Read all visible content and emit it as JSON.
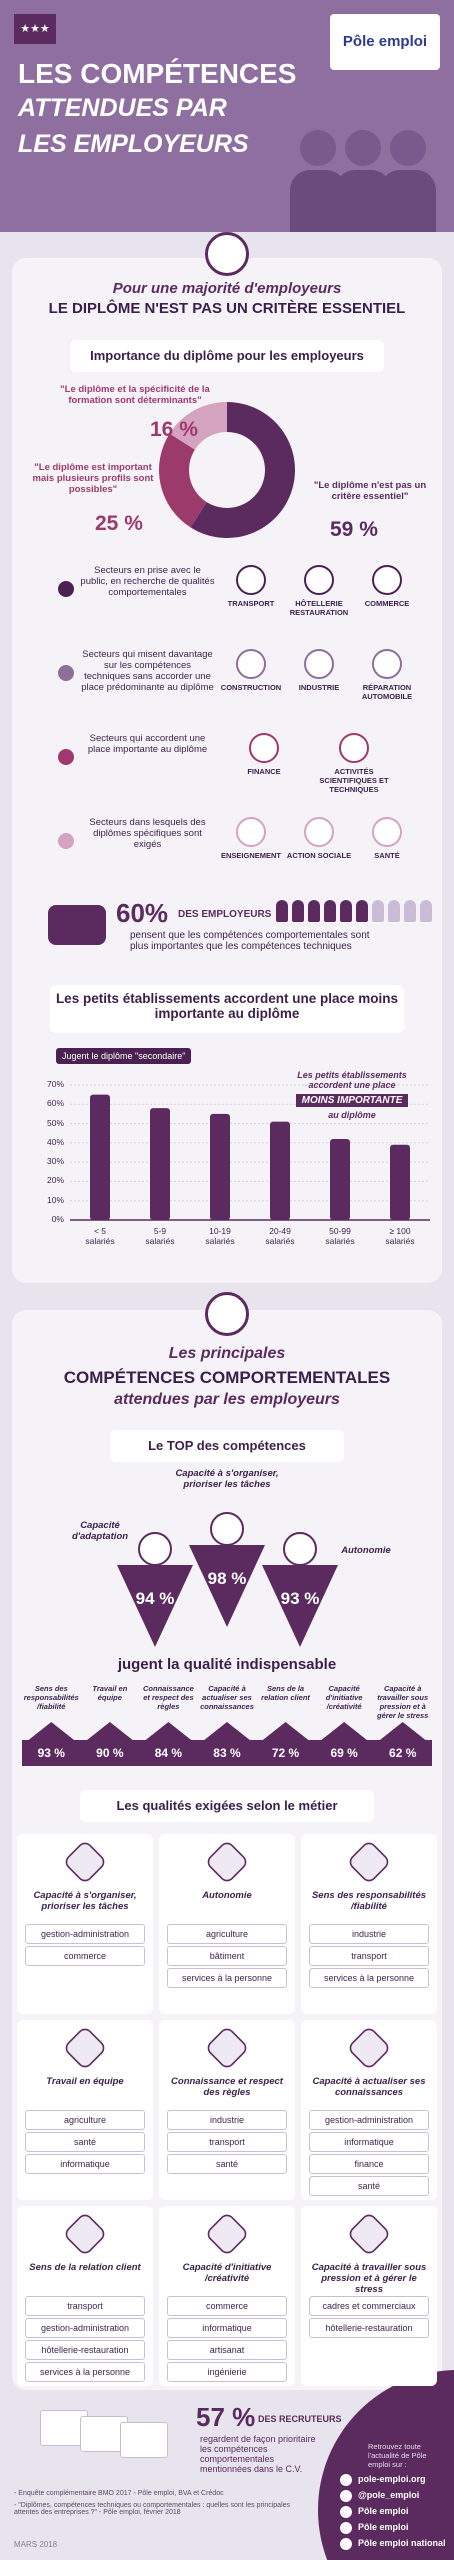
{
  "header": {
    "title_lines": [
      "LES COMPÉTENCES",
      "ATTENDUES PAR",
      "LES EMPLOYEURS"
    ],
    "logo": "Pôle emploi"
  },
  "section1": {
    "kicker": "Pour une majorité d'employeurs",
    "title": "LE DIPLÔME N'EST PAS UN CRITÈRE ESSENTIEL",
    "sectors": [
      {
        "color": "#4a2150",
        "description": "Secteurs en prise avec le public, en recherche de qualités comportementales",
        "items": [
          "TRANSPORT",
          "HÔTELLERIE RESTAURATION",
          "COMMERCE"
        ]
      },
      {
        "color": "#8d6f9b",
        "description": "Secteurs qui misent davantage sur les compétences techniques sans accorder une place prédominante au diplôme",
        "items": [
          "CONSTRUCTION",
          "INDUSTRIE",
          "RÉPARATION AUTOMOBILE"
        ]
      },
      {
        "color": "#a0386f",
        "description": "Secteurs qui accordent une place importante au diplôme",
        "items": [
          "FINANCE",
          "ACTIVITÉS SCIENTIFIQUES ET TECHNIQUES"
        ]
      },
      {
        "color": "#d3a3c0",
        "description": "Secteurs dans lesquels des diplômes spécifiques sont exigés",
        "items": [
          "ENSEIGNEMENT",
          "ACTION SOCIALE",
          "SANTÉ"
        ]
      }
    ],
    "stat": {
      "value": 60,
      "value_label": "60%",
      "lead": "DES EMPLOYEURS",
      "text": "pensent que les compétences comportementales sont plus importantes que les compétences techniques"
    }
  },
  "chart_data": [
    {
      "type": "pie",
      "title": "Importance du diplôme pour les employeurs",
      "categories": [
        "\"Le diplôme et la spécificité de la formation sont déterminants\"",
        "\"Le diplôme est important mais plusieurs profils sont possibles\"",
        "\"Le diplôme n'est pas un critère essentiel\""
      ],
      "values": [
        16,
        25,
        59
      ],
      "value_labels": [
        "16 %",
        "25 %",
        "59 %"
      ],
      "colors": [
        "#d3a3c0",
        "#9d3a6c",
        "#5b2a5e"
      ]
    },
    {
      "type": "bar",
      "title": "Les petits établissements accordent une place moins importante au diplôme",
      "categories": [
        "< 5 salariés",
        "5-9 salariés",
        "10-19 salariés",
        "20-49 salariés",
        "50-99 salariés",
        "≥ 100 salariés"
      ],
      "series": [
        {
          "name": "Jugent le diplôme \"secondaire\"",
          "color": "#5b2a5e",
          "values": [
            65,
            58,
            55,
            51,
            42,
            39
          ]
        }
      ],
      "ylim": [
        0,
        70
      ],
      "yticks": [
        {
          "value": 0,
          "label": "0%"
        },
        {
          "value": 10,
          "label": "10%"
        },
        {
          "value": 20,
          "label": "20%"
        },
        {
          "value": 30,
          "label": "30%"
        },
        {
          "value": 40,
          "label": "40%"
        },
        {
          "value": 50,
          "label": "50%"
        },
        {
          "value": 60,
          "label": "60%"
        },
        {
          "value": 70,
          "label": "70%"
        }
      ],
      "grid": true,
      "annotation": [
        "Les petits établissements accordent une place",
        "MOINS IMPORTANTE",
        "au diplôme"
      ]
    }
  ],
  "section2": {
    "title_lines": [
      "Les principales",
      "COMPÉTENCES COMPORTEMENTALES",
      "attendues par les employeurs"
    ],
    "top_title": "Le TOP des compétences",
    "top": [
      {
        "label": "Capacité d'adaptation",
        "value_label": "94 %"
      },
      {
        "label": "Capacité à s'organiser, prioriser les tâches",
        "value_label": "98 %"
      },
      {
        "label": "Autonomie",
        "value_label": "93 %"
      }
    ],
    "caption": "jugent la qualité indispensable",
    "others": [
      {
        "label": "Sens des responsabilités /fiabilité",
        "value_label": "93 %"
      },
      {
        "label": "Travail en équipe",
        "value_label": "90 %"
      },
      {
        "label": "Connaissance et respect des règles",
        "value_label": "84 %"
      },
      {
        "label": "Capacité à actualiser ses connaissances",
        "value_label": "83 %"
      },
      {
        "label": "Sens de la relation client",
        "value_label": "72 %"
      },
      {
        "label": "Capacité d'initiative /créativité",
        "value_label": "69 %"
      },
      {
        "label": "Capacité à travailler sous pression et à gérer le stress",
        "value_label": "62 %"
      }
    ],
    "jobs_title": "Les qualités exigées selon le métier",
    "jobs": [
      {
        "title": "Capacité à s'organiser, prioriser les tâches",
        "items": [
          "gestion-administration",
          "commerce"
        ]
      },
      {
        "title": "Autonomie",
        "items": [
          "agriculture",
          "bâtiment",
          "services à la personne"
        ]
      },
      {
        "title": "Sens des responsabilités /fiabilité",
        "items": [
          "industrie",
          "transport",
          "services à la personne"
        ]
      },
      {
        "title": "Travail en équipe",
        "items": [
          "agriculture",
          "santé",
          "informatique"
        ]
      },
      {
        "title": "Connaissance et respect des règles",
        "items": [
          "industrie",
          "transport",
          "santé"
        ]
      },
      {
        "title": "Capacité à actualiser ses connaissances",
        "items": [
          "gestion-administration",
          "informatique",
          "finance",
          "santé"
        ]
      },
      {
        "title": "Sens de la relation client",
        "items": [
          "transport",
          "gestion-administration",
          "hôtellerie-restauration",
          "services à la personne"
        ]
      },
      {
        "title": "Capacité d'initiative /créativité",
        "items": [
          "commerce",
          "informatique",
          "artisanat",
          "ingénierie"
        ]
      },
      {
        "title": "Capacité à travailler sous pression et à gérer le stress",
        "items": [
          "cadres et commerciaux",
          "hôtellerie-restauration"
        ]
      }
    ]
  },
  "footer": {
    "stat_label": "57 %",
    "stat_lead": "DES RECRUTEURS",
    "stat_text": "regardent de façon prioritaire les compétences comportementales mentionnées dans le C.V.",
    "sources": [
      "- Enquête complémentaire BMO 2017 - Pôle emploi, BVA et Crédoc",
      "- \"Diplômes, compétences techniques ou comportementales : quelles sont les principales attentes des entreprises ?\" - Pôle emploi, février 2018"
    ],
    "date": "MARS 2018",
    "social_intro": "Retrouvez toute l'actualité de Pôle emploi sur :",
    "social": [
      "pole-emploi.org",
      "@pole_emploi",
      "Pôle emploi",
      "Pôle emploi",
      "Pôle emploi national"
    ]
  }
}
